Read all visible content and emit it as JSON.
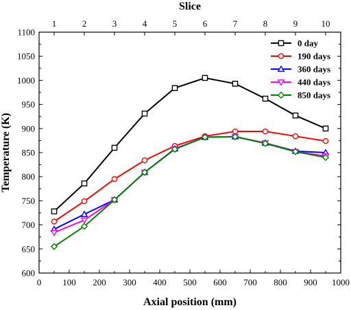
{
  "chart_data": {
    "type": "line",
    "title": "",
    "xlabel": "Axial position (mm)",
    "ylabel": "Temperature (K)",
    "top_xlabel": "Slice",
    "xlim": [
      0,
      1000
    ],
    "ylim": [
      600,
      1100
    ],
    "x_ticks": [
      0,
      100,
      200,
      300,
      400,
      500,
      600,
      700,
      800,
      900,
      1000
    ],
    "y_ticks": [
      600,
      650,
      700,
      750,
      800,
      850,
      900,
      950,
      1000,
      1050,
      1100
    ],
    "top_ticks": [
      {
        "label": "1",
        "x": 50
      },
      {
        "label": "2",
        "x": 150
      },
      {
        "label": "3",
        "x": 250
      },
      {
        "label": "4",
        "x": 350
      },
      {
        "label": "5",
        "x": 450
      },
      {
        "label": "6",
        "x": 550
      },
      {
        "label": "7",
        "x": 650
      },
      {
        "label": "8",
        "x": 750
      },
      {
        "label": "9",
        "x": 850
      },
      {
        "label": "10",
        "x": 950
      }
    ],
    "grid": false,
    "legend_position": "top-right",
    "series": [
      {
        "name": "0 day",
        "color": "#000000",
        "marker": "square",
        "x": [
          50,
          150,
          250,
          350,
          450,
          550,
          650,
          750,
          850,
          950
        ],
        "y": [
          728,
          786,
          860,
          931,
          984,
          1005,
          993,
          962,
          927,
          900
        ]
      },
      {
        "name": "190 days",
        "color": "#ff0000",
        "marker": "circle",
        "x": [
          50,
          150,
          250,
          350,
          450,
          550,
          650,
          750,
          850,
          950
        ],
        "y": [
          707,
          749,
          795,
          834,
          864,
          884,
          894,
          894,
          884,
          874
        ]
      },
      {
        "name": "360 days",
        "color": "#0000ff",
        "marker": "triangle-up",
        "x": [
          50,
          150,
          250,
          350,
          450,
          550,
          650,
          750,
          850,
          950
        ],
        "y": [
          691,
          722,
          752,
          809,
          858,
          882,
          883,
          870,
          853,
          850
        ]
      },
      {
        "name": "440 days",
        "color": "#ff00ff",
        "marker": "triangle-down",
        "x": [
          50,
          150,
          250,
          350,
          450,
          550,
          650,
          750,
          850,
          950
        ],
        "y": [
          684,
          710,
          752,
          809,
          858,
          882,
          883,
          870,
          852,
          843
        ]
      },
      {
        "name": "850 days",
        "color": "#008000",
        "marker": "diamond",
        "x": [
          50,
          150,
          250,
          350,
          450,
          550,
          650,
          750,
          850,
          950
        ],
        "y": [
          655,
          697,
          752,
          809,
          857,
          882,
          883,
          869,
          852,
          840
        ]
      }
    ]
  }
}
